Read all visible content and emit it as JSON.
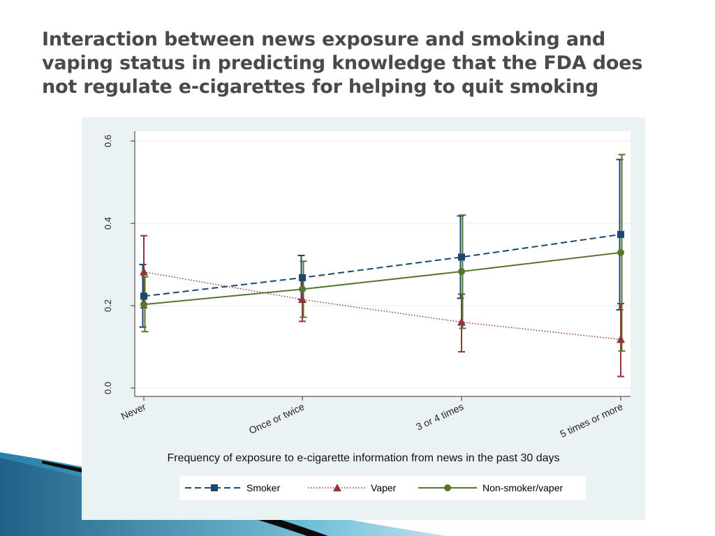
{
  "slide": {
    "title": "Interaction between news exposure and smoking and vaping status in predicting knowledge that the FDA does not regulate e-cigarettes for helping to quit smoking"
  },
  "colors": {
    "panel_bg": "#eaf2f3",
    "plot_bg": "#ffffff",
    "smoker": "#1a476f",
    "vaper": "#90353b",
    "non_smoker_vaper": "#55752f",
    "title_text": "#4a4a4a"
  },
  "chart_data": {
    "type": "line",
    "title": "",
    "xlabel": "Frequency of exposure to e-cigarette information from news in the past 30 days",
    "ylabel": "",
    "categories": [
      "Never",
      "Once or twice",
      "3 or 4 times",
      "5 times or more"
    ],
    "ylim": [
      0,
      0.6
    ],
    "yticks": [
      0.0,
      0.2,
      0.4,
      0.6
    ],
    "ytick_labels": [
      "0.0",
      "0.2",
      "0.4",
      "0.6"
    ],
    "grid": true,
    "legend_position": "bottom",
    "series": [
      {
        "name": "Smoker",
        "line_style": "dashed",
        "marker": "square",
        "color": "#1a476f",
        "values": [
          0.223,
          0.268,
          0.318,
          0.373
        ],
        "ci_low": [
          0.148,
          0.215,
          0.218,
          0.19
        ],
        "ci_high": [
          0.3,
          0.322,
          0.418,
          0.555
        ]
      },
      {
        "name": "Vaper",
        "line_style": "dotted",
        "marker": "triangle",
        "color": "#90353b",
        "values": [
          0.282,
          0.215,
          0.16,
          0.118
        ],
        "ci_low": [
          0.195,
          0.162,
          0.088,
          0.028
        ],
        "ci_high": [
          0.37,
          0.268,
          0.228,
          0.205
        ]
      },
      {
        "name": "Non-smoker/vaper",
        "line_style": "solid",
        "marker": "circle",
        "color": "#55752f",
        "values": [
          0.203,
          0.24,
          0.283,
          0.329
        ],
        "ci_low": [
          0.137,
          0.172,
          0.145,
          0.09
        ],
        "ci_high": [
          0.27,
          0.308,
          0.42,
          0.567
        ]
      }
    ]
  },
  "legend": {
    "items": [
      "Smoker",
      "Vaper",
      "Non-smoker/vaper"
    ]
  }
}
